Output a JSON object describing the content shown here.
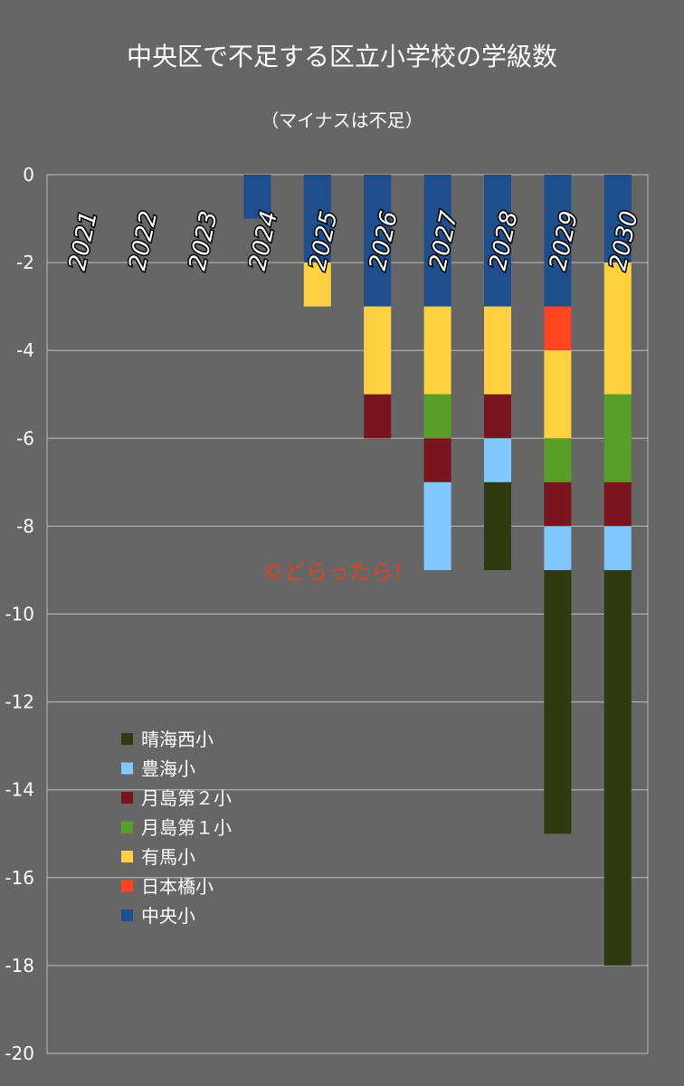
{
  "chart_data": {
    "type": "bar",
    "stacked": true,
    "title": "中央区で不足する区立小学校の学級数",
    "subtitle": "（マイナスは不足）",
    "watermark": "©どらったら！",
    "categories": [
      "2021",
      "2022",
      "2023",
      "2024",
      "2025",
      "2026",
      "2027",
      "2028",
      "2029",
      "2030"
    ],
    "ylim": [
      -20,
      0
    ],
    "yticks": [
      0,
      -2,
      -4,
      -6,
      -8,
      -10,
      -12,
      -14,
      -16,
      -18,
      -20
    ],
    "grid": true,
    "legend_position": "lower-left",
    "series": [
      {
        "name": "中央小",
        "color": "#1F4E8C",
        "values": [
          0,
          0,
          0,
          -1,
          -2,
          -3,
          -3,
          -3,
          -3,
          -2
        ]
      },
      {
        "name": "日本橋小",
        "color": "#FF4422",
        "values": [
          0,
          0,
          0,
          0,
          0,
          0,
          0,
          0,
          -1,
          0
        ]
      },
      {
        "name": "有馬小",
        "color": "#FFD040",
        "values": [
          0,
          0,
          0,
          0,
          -1,
          -2,
          -2,
          -2,
          -2,
          -3
        ]
      },
      {
        "name": "月島第１小",
        "color": "#5A9E2A",
        "values": [
          0,
          0,
          0,
          0,
          0,
          0,
          -1,
          0,
          -1,
          -2
        ]
      },
      {
        "name": "月島第２小",
        "color": "#7A1520",
        "values": [
          0,
          0,
          0,
          0,
          0,
          -1,
          -1,
          -1,
          -1,
          -1
        ]
      },
      {
        "name": "豊海小",
        "color": "#80C8FF",
        "values": [
          0,
          0,
          0,
          0,
          0,
          0,
          -2,
          -1,
          -1,
          -1
        ]
      },
      {
        "name": "晴海西小",
        "color": "#2F3A10",
        "values": [
          0,
          0,
          0,
          0,
          0,
          0,
          0,
          -2,
          -6,
          -9
        ]
      }
    ],
    "legend_order": [
      "晴海西小",
      "豊海小",
      "月島第２小",
      "月島第１小",
      "有馬小",
      "日本橋小",
      "中央小"
    ]
  }
}
